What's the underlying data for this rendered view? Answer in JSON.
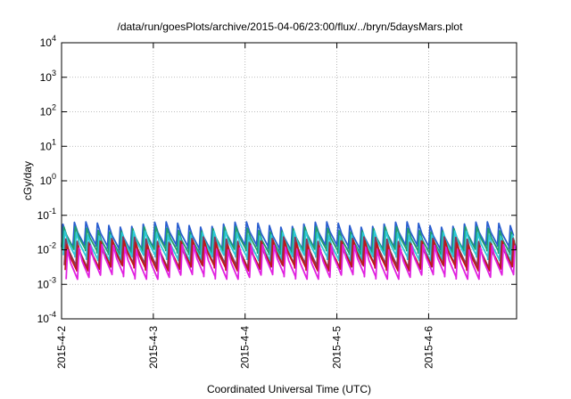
{
  "chart_data": {
    "type": "line",
    "title": "/data/run/goesPlots/archive/2015-04-06/23:00/flux/../bryn/5daysMars.plot",
    "xlabel": "Coordinated Universal Time (UTC)",
    "ylabel": "cGy/day",
    "y_scale": "log",
    "ylim": [
      0.0001,
      10000
    ],
    "xlim": [
      "2015-04-02 00:00",
      "2015-04-06 23:00"
    ],
    "x_ticks": [
      "2015-4-2",
      "2015-4-3",
      "2015-4-4",
      "2015-4-5",
      "2015-4-6"
    ],
    "y_ticks": [
      {
        "base": "10",
        "exp": "-4"
      },
      {
        "base": "10",
        "exp": "-3"
      },
      {
        "base": "10",
        "exp": "-2"
      },
      {
        "base": "10",
        "exp": "-1"
      },
      {
        "base": "10",
        "exp": "0"
      },
      {
        "base": "10",
        "exp": "1"
      },
      {
        "base": "10",
        "exp": "2"
      },
      {
        "base": "10",
        "exp": "3"
      },
      {
        "base": "10",
        "exp": "4"
      }
    ],
    "grid": true,
    "legend": "none",
    "cycles_per_day": 8,
    "series": [
      {
        "color": "#2a5fd0",
        "peak": 0.055,
        "trough": 0.012
      },
      {
        "color": "#1f9e6e",
        "peak": 0.04,
        "trough": 0.009
      },
      {
        "color": "#2ec8d8",
        "peak": 0.03,
        "trough": 0.006
      },
      {
        "color": "#8a3a5a",
        "peak": 0.02,
        "trough": 0.0035
      },
      {
        "color": "#c01818",
        "peak": 0.016,
        "trough": 0.003
      },
      {
        "color": "#e020e0",
        "peak": 0.012,
        "trough": 0.0017
      }
    ]
  }
}
